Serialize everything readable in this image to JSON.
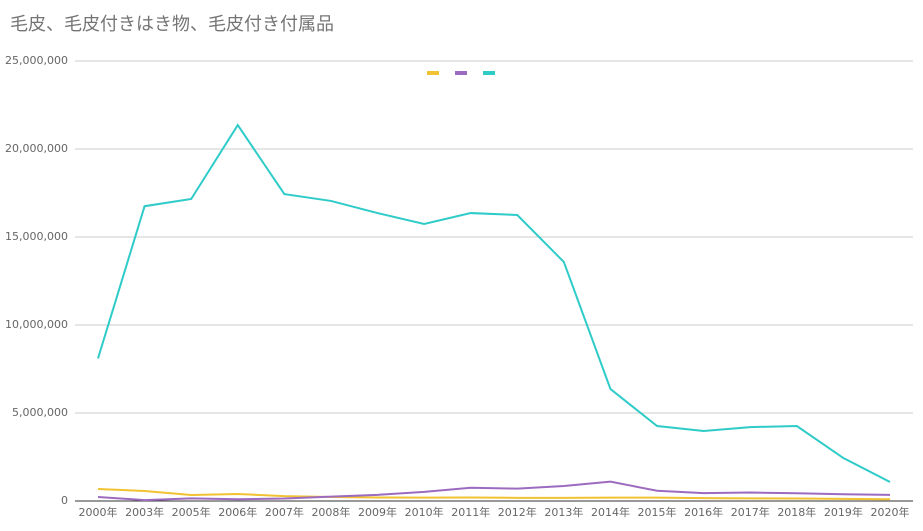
{
  "chart_data": {
    "type": "line",
    "title": "毛皮、毛皮付きはき物、毛皮付き付属品",
    "categories": [
      "2000年",
      "2003年",
      "2005年",
      "2006年",
      "2007年",
      "2008年",
      "2009年",
      "2010年",
      "2011年",
      "2012年",
      "2013年",
      "2014年",
      "2015年",
      "2016年",
      "2017年",
      "2018年",
      "2019年",
      "2020年"
    ],
    "series": [
      {
        "color": "#f1c232",
        "values": [
          680000,
          570000,
          340000,
          400000,
          280000,
          230000,
          200000,
          190000,
          200000,
          180000,
          180000,
          190000,
          190000,
          160000,
          150000,
          140000,
          120000,
          100000
        ]
      },
      {
        "color": "#9c6bbf",
        "values": [
          230000,
          50000,
          150000,
          100000,
          140000,
          250000,
          350000,
          520000,
          750000,
          700000,
          850000,
          1100000,
          580000,
          450000,
          480000,
          440000,
          380000,
          350000
        ]
      },
      {
        "color": "#2ecbc9",
        "values": [
          8100000,
          16750000,
          17160000,
          21360000,
          17440000,
          17050000,
          16360000,
          15740000,
          16360000,
          16250000,
          13580000,
          6360000,
          4260000,
          3980000,
          4200000,
          4260000,
          2440000,
          1080000
        ]
      }
    ],
    "ylim": [
      0,
      25000000
    ],
    "yticks": [
      0,
      {
        "value": 5000000,
        "label": "5,000,000"
      },
      {
        "value": 10000000,
        "label": "10,000,000"
      },
      {
        "value": 15000000,
        "label": "15,000,000"
      },
      {
        "value": 20000000,
        "label": "20,000,000"
      },
      {
        "value": 25000000,
        "label": "25,000,000"
      }
    ],
    "grid": true
  }
}
